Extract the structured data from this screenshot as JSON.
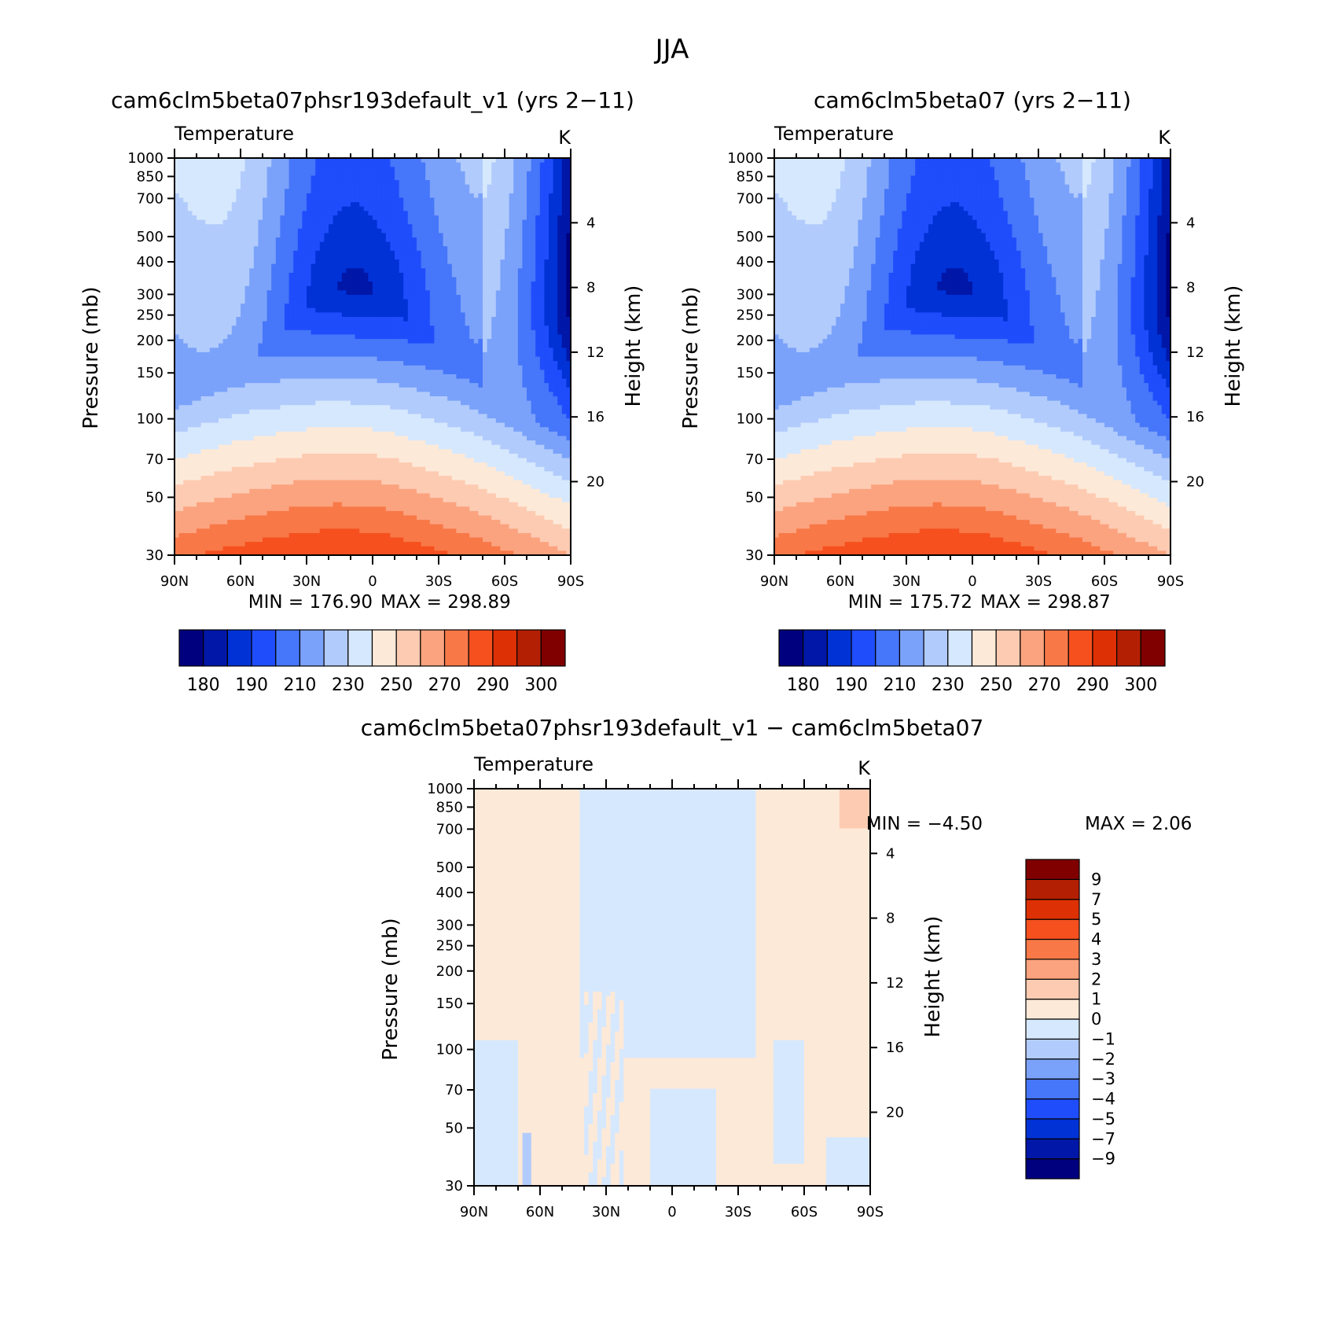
{
  "figure": {
    "title": "JJA"
  },
  "colorbars": {
    "absolute": {
      "colors": [
        "#00007f",
        "#0017a8",
        "#0032d6",
        "#1f4dfc",
        "#4676f9",
        "#7ba2fa",
        "#b1cbfc",
        "#d6e8fd",
        "#fde9d8",
        "#fdcbb2",
        "#fba37f",
        "#f87848",
        "#f6501f",
        "#dd3005",
        "#b31f03",
        "#800000"
      ],
      "labels": [
        "180",
        "190",
        "210",
        "230",
        "250",
        "270",
        "290",
        "300"
      ],
      "levels": [
        180,
        190,
        200,
        210,
        220,
        230,
        240,
        250,
        260,
        270,
        280,
        290,
        300
      ]
    },
    "difference": {
      "colors": [
        "#00007f",
        "#0017a8",
        "#0032d6",
        "#1f4dfc",
        "#4676f9",
        "#7ba2fa",
        "#b1cbfc",
        "#d6e8fd",
        "#fde9d8",
        "#fdcbb2",
        "#fba37f",
        "#f87848",
        "#f6501f",
        "#dd3005",
        "#b31f03",
        "#800000"
      ],
      "labels": [
        "9",
        "7",
        "5",
        "4",
        "3",
        "2",
        "1",
        "0",
        "−1",
        "−2",
        "−3",
        "−4",
        "−5",
        "−7",
        "−9"
      ],
      "levels": [
        -9,
        -7,
        -5,
        -4,
        -3,
        -2,
        -1,
        0,
        1,
        2,
        3,
        4,
        5,
        7,
        9
      ]
    }
  },
  "chart_data": [
    {
      "type": "heatmap",
      "title": "cam6clm5beta07phsr193default_v1 (yrs 2−11)",
      "variable": "Temperature",
      "units": "K",
      "x": {
        "label": "",
        "ticks": [
          "90N",
          "60N",
          "30N",
          "0",
          "30S",
          "60S",
          "90S"
        ],
        "range": [
          90,
          -90
        ]
      },
      "y": {
        "label": "Pressure (mb)",
        "ticks": [
          "30",
          "50",
          "70",
          "100",
          "150",
          "200",
          "250",
          "300",
          "400",
          "500",
          "700",
          "850",
          "1000"
        ],
        "scale": "log",
        "range": [
          1000,
          30
        ]
      },
      "y2": {
        "label": "Height (km)",
        "ticks": [
          "20",
          "16",
          "12",
          "8",
          "4"
        ]
      },
      "min_label": "MIN = 176.90",
      "max_label": "MAX = 298.89",
      "min": 176.9,
      "max": 298.89
    },
    {
      "type": "heatmap",
      "title": "cam6clm5beta07 (yrs 2−11)",
      "variable": "Temperature",
      "units": "K",
      "x": {
        "label": "",
        "ticks": [
          "90N",
          "60N",
          "30N",
          "0",
          "30S",
          "60S",
          "90S"
        ],
        "range": [
          90,
          -90
        ]
      },
      "y": {
        "label": "Pressure (mb)",
        "ticks": [
          "30",
          "50",
          "70",
          "100",
          "150",
          "200",
          "250",
          "300",
          "400",
          "500",
          "700",
          "850",
          "1000"
        ],
        "scale": "log",
        "range": [
          1000,
          30
        ]
      },
      "y2": {
        "label": "Height (km)",
        "ticks": [
          "20",
          "16",
          "12",
          "8",
          "4"
        ]
      },
      "min_label": "MIN = 175.72",
      "max_label": "MAX = 298.87",
      "min": 175.72,
      "max": 298.87
    },
    {
      "type": "heatmap",
      "title": "cam6clm5beta07phsr193default_v1 − cam6clm5beta07",
      "variable": "Temperature",
      "units": "K",
      "x": {
        "label": "",
        "ticks": [
          "90N",
          "60N",
          "30N",
          "0",
          "30S",
          "60S",
          "90S"
        ],
        "range": [
          90,
          -90
        ]
      },
      "y": {
        "label": "Pressure (mb)",
        "ticks": [
          "30",
          "50",
          "70",
          "100",
          "150",
          "200",
          "250",
          "300",
          "400",
          "500",
          "700",
          "850",
          "1000"
        ],
        "scale": "log",
        "range": [
          1000,
          30
        ]
      },
      "y2": {
        "label": "Height (km)",
        "ticks": [
          "20",
          "16",
          "12",
          "8",
          "4"
        ]
      },
      "min_label": "MIN = −4.50",
      "max_label": "MAX = 2.06",
      "min": -4.5,
      "max": 2.06
    }
  ]
}
